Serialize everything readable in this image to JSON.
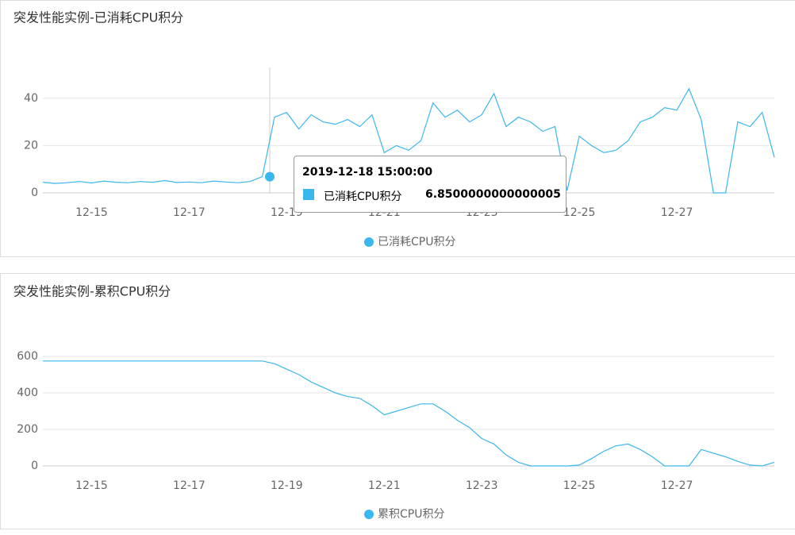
{
  "chart_data": [
    {
      "type": "line",
      "title": "突发性能实例-已消耗CPU积分",
      "categories": [
        null,
        null,
        null,
        null,
        "12-15",
        null,
        null,
        null,
        null,
        null,
        null,
        null,
        "12-17",
        null,
        null,
        null,
        null,
        null,
        null,
        null,
        "12-19",
        null,
        null,
        null,
        null,
        null,
        null,
        null,
        "12-21",
        null,
        null,
        null,
        null,
        null,
        null,
        null,
        "12-23",
        null,
        null,
        null,
        null,
        null,
        null,
        null,
        "12-25",
        null,
        null,
        null,
        null,
        null,
        null,
        null,
        "12-27",
        null,
        null,
        null,
        null,
        null,
        null,
        null,
        null
      ],
      "series": [
        {
          "name": "已消耗CPU积分",
          "color": "#3ab7ec",
          "values": [
            4.5,
            4,
            4.3,
            4.8,
            4.2,
            5,
            4.5,
            4.3,
            4.8,
            4.5,
            5.2,
            4.4,
            4.6,
            4.3,
            5,
            4.6,
            4.3,
            4.8,
            6.85,
            32,
            34,
            27,
            33,
            30,
            29,
            31,
            28,
            33,
            17,
            20,
            18,
            22,
            38,
            32,
            35,
            30,
            33,
            42,
            28,
            32,
            30,
            26,
            28,
            1,
            24,
            20,
            17,
            18,
            22,
            30,
            32,
            36,
            35,
            44,
            31,
            0,
            0,
            30,
            28,
            34,
            15
          ]
        }
      ],
      "ylim": [
        0,
        53
      ],
      "yticks": [
        0,
        20,
        40
      ],
      "grid": true,
      "tooltip": {
        "title": "2019-12-18 15:00:00",
        "series_name": "已消耗CPU积分",
        "value": 6.8500000000000005
      }
    },
    {
      "type": "line",
      "title": "突发性能实例-累积CPU积分",
      "categories": [
        null,
        null,
        null,
        null,
        "12-15",
        null,
        null,
        null,
        null,
        null,
        null,
        null,
        "12-17",
        null,
        null,
        null,
        null,
        null,
        null,
        null,
        "12-19",
        null,
        null,
        null,
        null,
        null,
        null,
        null,
        "12-21",
        null,
        null,
        null,
        null,
        null,
        null,
        null,
        "12-23",
        null,
        null,
        null,
        null,
        null,
        null,
        null,
        "12-25",
        null,
        null,
        null,
        null,
        null,
        null,
        null,
        "12-27",
        null,
        null,
        null,
        null,
        null,
        null,
        null,
        null
      ],
      "series": [
        {
          "name": "累积CPU积分",
          "color": "#3ab7ec",
          "values": [
            575,
            575,
            575,
            575,
            575,
            575,
            575,
            575,
            575,
            575,
            575,
            575,
            575,
            575,
            575,
            575,
            575,
            575,
            575,
            560,
            530,
            500,
            460,
            430,
            400,
            380,
            370,
            330,
            280,
            300,
            320,
            340,
            340,
            300,
            250,
            210,
            150,
            120,
            60,
            20,
            0,
            0,
            0,
            0,
            5,
            40,
            80,
            110,
            120,
            90,
            50,
            0,
            0,
            0,
            90,
            70,
            50,
            25,
            5,
            0,
            20
          ]
        }
      ],
      "ylim": [
        0,
        700
      ],
      "yticks": [
        0,
        200,
        400,
        600
      ],
      "grid": true
    }
  ]
}
